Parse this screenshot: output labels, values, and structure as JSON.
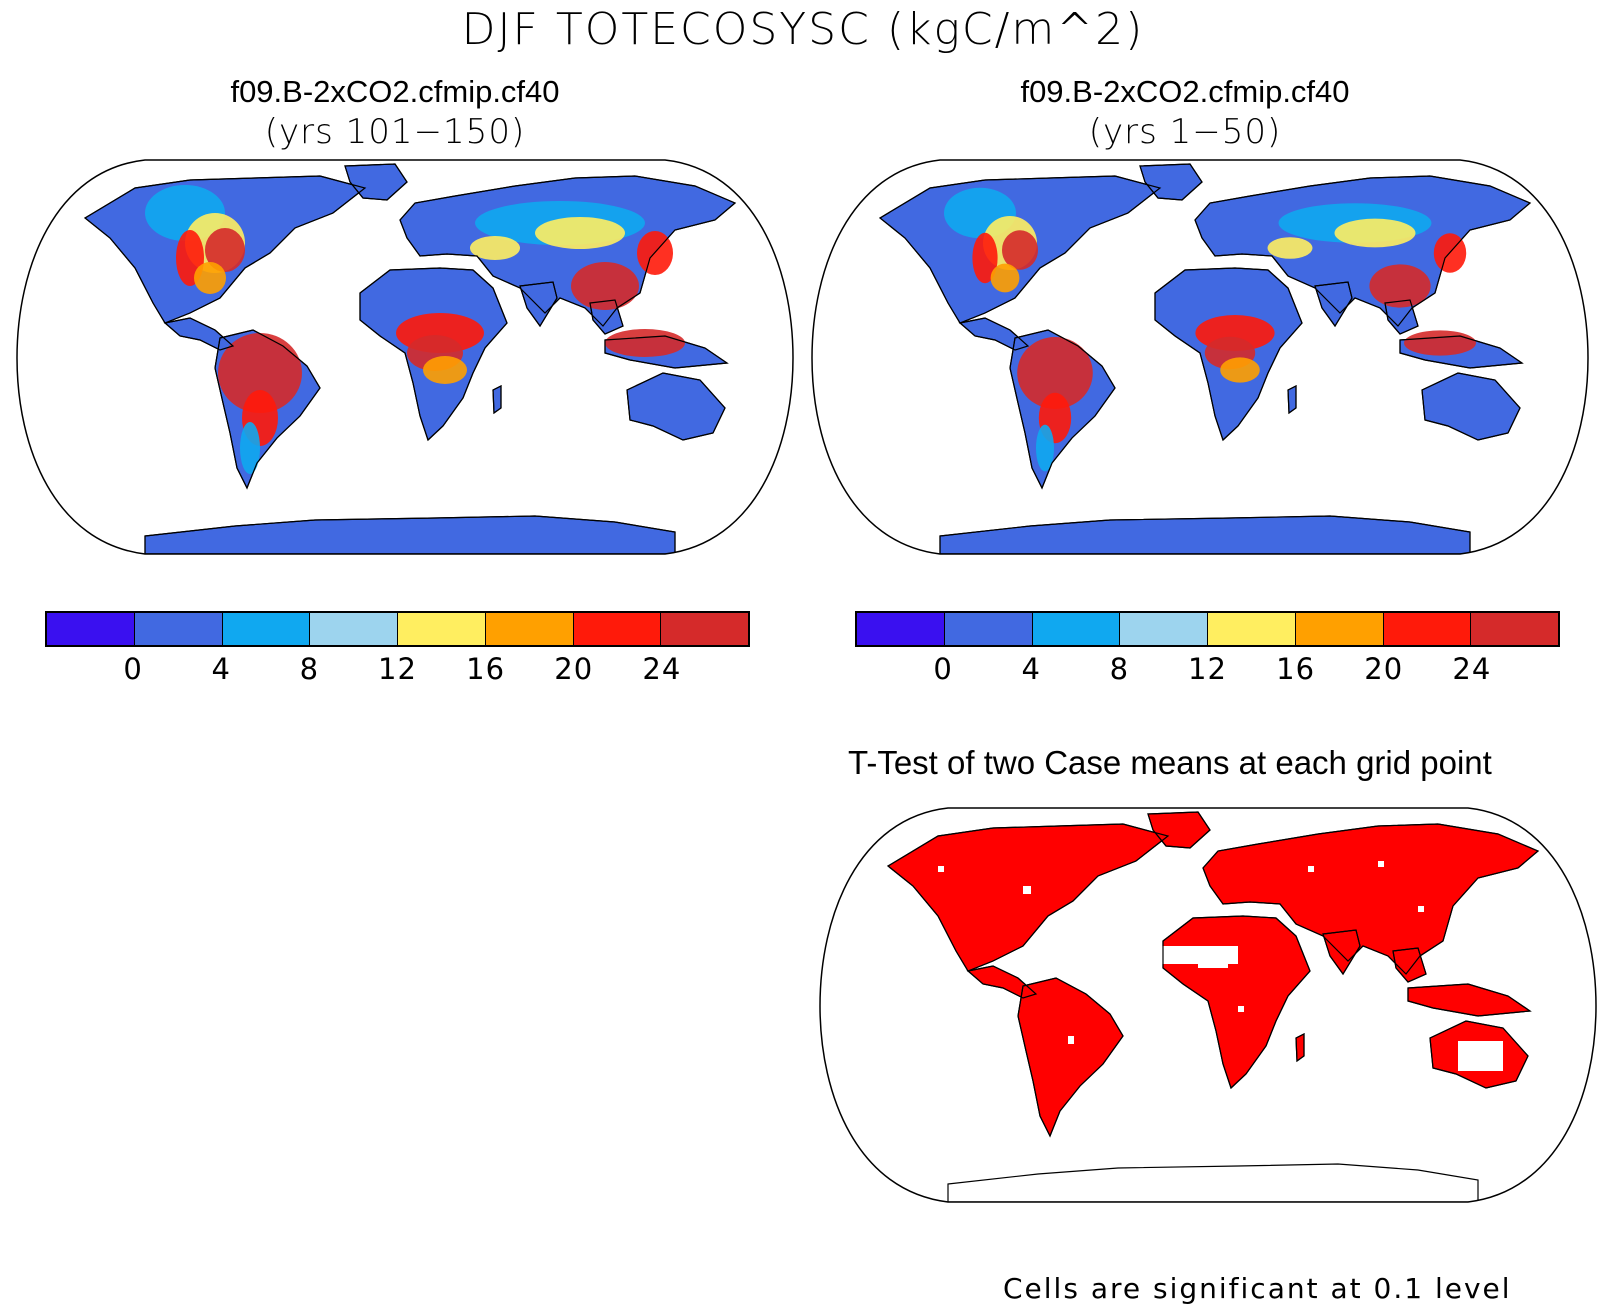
{
  "title": "DJF TOTECOSYSC (kgC/m^2)",
  "panels": [
    {
      "case": "f09.B-2xCO2.cfmip.cf40",
      "years": "(yrs 101−150)"
    },
    {
      "case": "f09.B-2xCO2.cfmip.cf40",
      "years": "(yrs 1−50)"
    }
  ],
  "colorbar": {
    "labels": [
      "0",
      "4",
      "8",
      "12",
      "16",
      "20",
      "24"
    ],
    "colors": [
      "#3a10f0",
      "#4169e1",
      "#10a8f0",
      "#9dd4ee",
      "#ffee60",
      "#ffa000",
      "#ff1a0a",
      "#d52a2a"
    ]
  },
  "ttest": {
    "title": "T-Test of two Case means at each grid point",
    "significant_color": "#ff0000",
    "footnote": "Cells are significant at 0.1 level"
  },
  "land_color": "#4169e1"
}
